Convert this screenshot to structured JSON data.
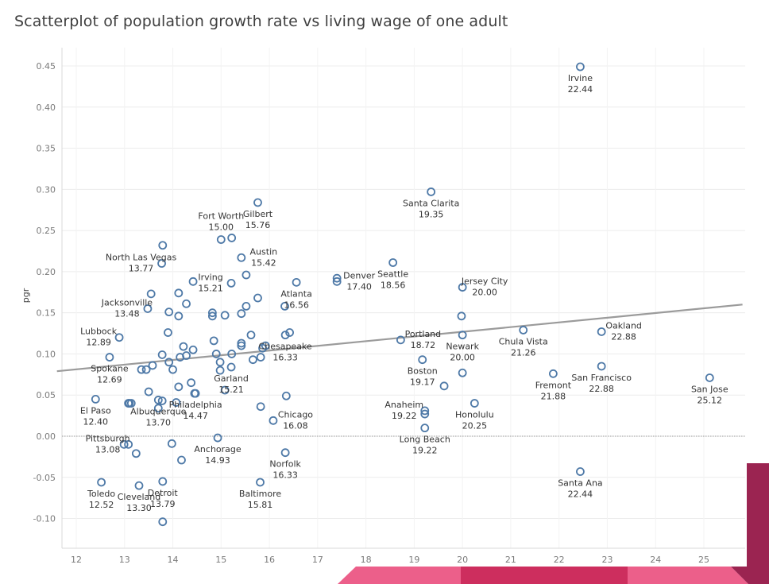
{
  "chart_data": {
    "type": "scatter",
    "title": "Scatterplot of population growth rate vs living wage of one adult",
    "xlabel": "",
    "ylabel": "pgr",
    "xlim": [
      11.6,
      25.8
    ],
    "ylim": [
      -0.13,
      0.47
    ],
    "xticks": [
      12,
      13,
      14,
      15,
      16,
      17,
      18,
      19,
      20,
      21,
      22,
      23,
      24,
      25
    ],
    "yticks": [
      0.45,
      0.4,
      0.35,
      0.3,
      0.25,
      0.2,
      0.15,
      0.1,
      0.05,
      0.0,
      -0.05,
      -0.1
    ],
    "ytick_labels": [
      "0.45",
      "0.40",
      "0.35",
      "0.30",
      "0.25",
      "0.20",
      "0.15",
      "0.10",
      "0.05",
      "0.00",
      "-0.05",
      "-0.10"
    ],
    "trend_line": {
      "x": [
        11.6,
        25.8
      ],
      "y": [
        0.079,
        0.16
      ]
    },
    "labeled_points": [
      {
        "name": "Irvine",
        "wage": "22.44",
        "x": 22.44,
        "y": 0.449,
        "label_pos": "below"
      },
      {
        "name": "Santa Clarita",
        "wage": "19.35",
        "x": 19.35,
        "y": 0.297,
        "label_pos": "below"
      },
      {
        "name": "Fort Worth",
        "wage": "15.00",
        "x": 15.0,
        "y": 0.239,
        "label_pos": "above"
      },
      {
        "name": "Gilbert",
        "wage": "15.76",
        "x": 15.76,
        "y": 0.284,
        "label_pos": "below"
      },
      {
        "name": "North Las Vegas",
        "wage": "13.77",
        "x": 13.77,
        "y": 0.21,
        "label_pos": "left"
      },
      {
        "name": "Austin",
        "wage": "15.42",
        "x": 15.42,
        "y": 0.217,
        "label_pos": "right"
      },
      {
        "name": "Irving",
        "wage": "15.21",
        "x": 15.21,
        "y": 0.186,
        "label_pos": "left"
      },
      {
        "name": "Denver",
        "wage": "17.40",
        "x": 17.4,
        "y": 0.188,
        "label_pos": "right"
      },
      {
        "name": "Seattle",
        "wage": "18.56",
        "x": 18.56,
        "y": 0.211,
        "label_pos": "below"
      },
      {
        "name": "Jersey City",
        "wage": "20.00",
        "x": 20.0,
        "y": 0.181,
        "label_pos": "right"
      },
      {
        "name": "Atlanta",
        "wage": "16.56",
        "x": 16.56,
        "y": 0.187,
        "label_pos": "below"
      },
      {
        "name": "Jacksonville",
        "wage": "13.48",
        "x": 13.48,
        "y": 0.155,
        "label_pos": "left"
      },
      {
        "name": "Lubbock",
        "wage": "12.89",
        "x": 12.89,
        "y": 0.12,
        "label_pos": "left"
      },
      {
        "name": "Portland",
        "wage": "18.72",
        "x": 18.72,
        "y": 0.117,
        "label_pos": "right"
      },
      {
        "name": "Newark",
        "wage": "20.00",
        "x": 20.0,
        "y": 0.123,
        "label_pos": "below"
      },
      {
        "name": "Chula Vista",
        "wage": "21.26",
        "x": 21.26,
        "y": 0.129,
        "label_pos": "below"
      },
      {
        "name": "Oakland",
        "wage": "22.88",
        "x": 22.88,
        "y": 0.127,
        "label_pos": "right"
      },
      {
        "name": "Chesapeake",
        "wage": "16.33",
        "x": 16.33,
        "y": 0.123,
        "label_pos": "below"
      },
      {
        "name": "Spokane",
        "wage": "12.69",
        "x": 12.69,
        "y": 0.096,
        "label_pos": "below"
      },
      {
        "name": "Boston",
        "wage": "19.17",
        "x": 19.17,
        "y": 0.093,
        "label_pos": "below"
      },
      {
        "name": "Fremont",
        "wage": "21.88",
        "x": 21.88,
        "y": 0.076,
        "label_pos": "below"
      },
      {
        "name": "San Francisco",
        "wage": "22.88",
        "x": 22.88,
        "y": 0.085,
        "label_pos": "below"
      },
      {
        "name": "San Jose",
        "wage": "25.12",
        "x": 25.12,
        "y": 0.071,
        "label_pos": "below"
      },
      {
        "name": "Garland",
        "wage": "15.21",
        "x": 15.21,
        "y": 0.084,
        "label_pos": "below"
      },
      {
        "name": "El Paso",
        "wage": "12.40",
        "x": 12.4,
        "y": 0.045,
        "label_pos": "below"
      },
      {
        "name": "Albuquerque",
        "wage": "13.70",
        "x": 13.7,
        "y": 0.044,
        "label_pos": "below"
      },
      {
        "name": "Philadelphia",
        "wage": "14.47",
        "x": 14.47,
        "y": 0.052,
        "label_pos": "below"
      },
      {
        "name": "Chicago",
        "wage": "16.08",
        "x": 16.08,
        "y": 0.019,
        "label_pos": "right"
      },
      {
        "name": "Anaheim",
        "wage": "19.22",
        "x": 19.22,
        "y": 0.031,
        "label_pos": "left"
      },
      {
        "name": "Honolulu",
        "wage": "20.25",
        "x": 20.25,
        "y": 0.04,
        "label_pos": "below"
      },
      {
        "name": "Long Beach",
        "wage": "19.22",
        "x": 19.22,
        "y": 0.01,
        "label_pos": "below"
      },
      {
        "name": "Pittsburgh",
        "wage": "13.08",
        "x": 13.08,
        "y": -0.01,
        "label_pos": "left"
      },
      {
        "name": "Anchorage",
        "wage": "14.93",
        "x": 14.93,
        "y": -0.002,
        "label_pos": "below"
      },
      {
        "name": "Norfolk",
        "wage": "16.33",
        "x": 16.33,
        "y": -0.02,
        "label_pos": "below"
      },
      {
        "name": "Toledo",
        "wage": "12.52",
        "x": 12.52,
        "y": -0.056,
        "label_pos": "below"
      },
      {
        "name": "Cleveland",
        "wage": "13.30",
        "x": 13.3,
        "y": -0.06,
        "label_pos": "below"
      },
      {
        "name": "Detroit",
        "wage": "13.79",
        "x": 13.79,
        "y": -0.055,
        "label_pos": "below"
      },
      {
        "name": "Baltimore",
        "wage": "15.81",
        "x": 15.81,
        "y": -0.056,
        "label_pos": "below"
      },
      {
        "name": "Santa Ana",
        "wage": "22.44",
        "x": 22.44,
        "y": -0.043,
        "label_pos": "below"
      }
    ],
    "unlabeled_points": [
      {
        "x": 13.79,
        "y": -0.104
      },
      {
        "x": 13.79,
        "y": 0.232
      },
      {
        "x": 15.22,
        "y": 0.241
      },
      {
        "x": 15.52,
        "y": 0.196
      },
      {
        "x": 13.55,
        "y": 0.173
      },
      {
        "x": 14.12,
        "y": 0.174
      },
      {
        "x": 14.42,
        "y": 0.188
      },
      {
        "x": 14.28,
        "y": 0.161
      },
      {
        "x": 13.92,
        "y": 0.151
      },
      {
        "x": 14.12,
        "y": 0.146
      },
      {
        "x": 14.82,
        "y": 0.15
      },
      {
        "x": 14.82,
        "y": 0.146
      },
      {
        "x": 15.08,
        "y": 0.147
      },
      {
        "x": 15.42,
        "y": 0.149
      },
      {
        "x": 15.52,
        "y": 0.158
      },
      {
        "x": 15.76,
        "y": 0.168
      },
      {
        "x": 16.32,
        "y": 0.158
      },
      {
        "x": 17.4,
        "y": 0.192
      },
      {
        "x": 19.98,
        "y": 0.146
      },
      {
        "x": 15.62,
        "y": 0.123
      },
      {
        "x": 16.42,
        "y": 0.126
      },
      {
        "x": 13.9,
        "y": 0.126
      },
      {
        "x": 14.85,
        "y": 0.116
      },
      {
        "x": 15.42,
        "y": 0.113
      },
      {
        "x": 15.42,
        "y": 0.11
      },
      {
        "x": 15.92,
        "y": 0.11
      },
      {
        "x": 15.86,
        "y": 0.107
      },
      {
        "x": 14.22,
        "y": 0.109
      },
      {
        "x": 14.42,
        "y": 0.105
      },
      {
        "x": 14.9,
        "y": 0.1
      },
      {
        "x": 15.22,
        "y": 0.1
      },
      {
        "x": 13.78,
        "y": 0.099
      },
      {
        "x": 14.15,
        "y": 0.096
      },
      {
        "x": 14.28,
        "y": 0.098
      },
      {
        "x": 15.82,
        "y": 0.096
      },
      {
        "x": 15.66,
        "y": 0.093
      },
      {
        "x": 13.92,
        "y": 0.09
      },
      {
        "x": 14.98,
        "y": 0.09
      },
      {
        "x": 13.58,
        "y": 0.086
      },
      {
        "x": 13.35,
        "y": 0.081
      },
      {
        "x": 13.45,
        "y": 0.081
      },
      {
        "x": 14.0,
        "y": 0.081
      },
      {
        "x": 14.98,
        "y": 0.08
      },
      {
        "x": 20.0,
        "y": 0.077
      },
      {
        "x": 19.62,
        "y": 0.061
      },
      {
        "x": 14.38,
        "y": 0.065
      },
      {
        "x": 14.12,
        "y": 0.06
      },
      {
        "x": 13.5,
        "y": 0.054
      },
      {
        "x": 14.45,
        "y": 0.052
      },
      {
        "x": 15.08,
        "y": 0.056
      },
      {
        "x": 16.35,
        "y": 0.049
      },
      {
        "x": 13.78,
        "y": 0.043
      },
      {
        "x": 14.07,
        "y": 0.041
      },
      {
        "x": 13.1,
        "y": 0.04
      },
      {
        "x": 13.14,
        "y": 0.04
      },
      {
        "x": 13.08,
        "y": 0.04
      },
      {
        "x": 15.82,
        "y": 0.036
      },
      {
        "x": 13.7,
        "y": 0.034
      },
      {
        "x": 19.22,
        "y": 0.027
      },
      {
        "x": 12.99,
        "y": -0.01
      },
      {
        "x": 13.24,
        "y": -0.021
      },
      {
        "x": 14.18,
        "y": -0.029
      },
      {
        "x": 13.98,
        "y": -0.009
      }
    ]
  }
}
